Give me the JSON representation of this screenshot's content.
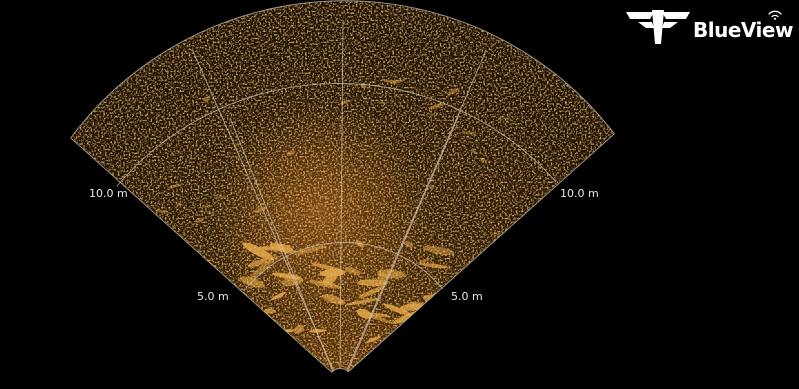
{
  "display": {
    "background_color": "#000000",
    "echo_color": "#d98a2a",
    "grid_color": "#cfc6bc"
  },
  "range_rings": {
    "inner_label": "5.0 m",
    "outer_label": "10.0 m"
  },
  "brand": {
    "name": "BlueView",
    "mark_icon": "teledyne-mark-icon",
    "wave_icon": "wifi-wave-icon",
    "color": "#ffffff"
  }
}
